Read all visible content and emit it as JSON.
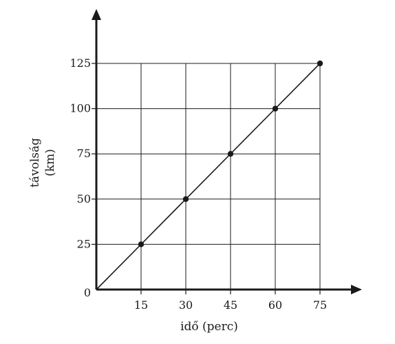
{
  "chart_data": {
    "type": "line",
    "x": [
      0,
      15,
      30,
      45,
      60,
      75
    ],
    "series": [
      {
        "values": [
          0,
          25,
          50,
          75,
          100,
          125
        ]
      }
    ],
    "xlabel": "idő (perc)",
    "ylabel_lines": [
      "távolság",
      "(km)"
    ],
    "x_ticks": [
      15,
      30,
      45,
      60,
      75
    ],
    "y_ticks": [
      25,
      50,
      75,
      100,
      125
    ],
    "origin_label": "0",
    "xlim": [
      0,
      75
    ],
    "ylim": [
      0,
      125
    ],
    "grid": true,
    "markers_at": [
      15,
      30,
      45,
      60,
      75
    ]
  }
}
